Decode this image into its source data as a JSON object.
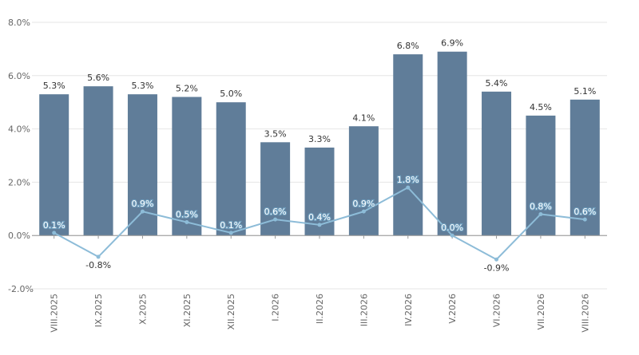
{
  "chart_data": {
    "type": "bar",
    "categories": [
      "VIII.2025",
      "IX.2025",
      "X.2025",
      "XI.2025",
      "XII.2025",
      "I.2026",
      "II.2026",
      "III.2026",
      "IV.2026",
      "V.2026",
      "VI.2026",
      "VII.2026",
      "VIII.2026"
    ],
    "series": [
      {
        "type": "bar",
        "values": [
          5.3,
          5.6,
          5.3,
          5.2,
          5.0,
          3.5,
          3.3,
          4.1,
          6.8,
          6.9,
          5.4,
          4.5,
          5.1
        ],
        "labels": [
          "5.3%",
          "5.6%",
          "5.3%",
          "5.2%",
          "5.0%",
          "3.5%",
          "3.3%",
          "4.1%",
          "6.8%",
          "6.9%",
          "5.4%",
          "4.5%",
          "5.1%"
        ],
        "color": "#607d99"
      },
      {
        "type": "line",
        "values": [
          0.1,
          -0.8,
          0.9,
          0.5,
          0.1,
          0.6,
          0.4,
          0.9,
          1.8,
          0.0,
          -0.9,
          0.8,
          0.6
        ],
        "labels": [
          "0.1%",
          "-0.8%",
          "0.9%",
          "0.5%",
          "0.1%",
          "0.6%",
          "0.4%",
          "0.9%",
          "1.8%",
          "0.0%",
          "-0.9%",
          "0.8%",
          "0.6%"
        ],
        "color": "#8dbcd8"
      }
    ],
    "ylim": [
      -2.0,
      8.0
    ],
    "yticks": [
      -2.0,
      0.0,
      2.0,
      4.0,
      6.0,
      8.0
    ],
    "ytick_labels": [
      "-2.0%",
      "0.0%",
      "2.0%",
      "4.0%",
      "6.0%",
      "8.0%"
    ],
    "grid": true,
    "title": "",
    "xlabel": "",
    "ylabel": ""
  }
}
